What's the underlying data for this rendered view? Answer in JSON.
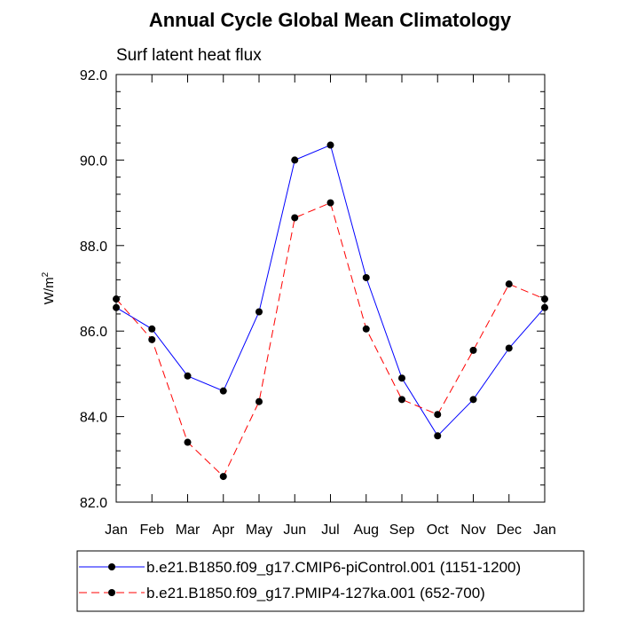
{
  "chart_data": {
    "type": "line",
    "title": "Annual Cycle Global Mean Climatology",
    "subtitle": "Surf latent heat flux",
    "ylabel_base": "W/m",
    "ylabel_sup": "2",
    "xlabel": "",
    "categories": [
      "Jan",
      "Feb",
      "Mar",
      "Apr",
      "May",
      "Jun",
      "Jul",
      "Aug",
      "Sep",
      "Oct",
      "Nov",
      "Dec",
      "Jan"
    ],
    "ylim": [
      82.0,
      92.0
    ],
    "yticks": [
      "82.0",
      "84.0",
      "86.0",
      "88.0",
      "90.0",
      "92.0"
    ],
    "series": [
      {
        "name": "b.e21.B1850.f09_g17.CMIP6-piControl.001 (1151-1200)",
        "color": "#0000ff",
        "dash": "solid",
        "values": [
          86.55,
          86.05,
          84.95,
          84.6,
          86.45,
          90.0,
          90.35,
          87.25,
          84.9,
          83.55,
          84.4,
          85.6,
          86.55
        ]
      },
      {
        "name": "b.e21.B1850.f09_g17.PMIP4-127ka.001 (652-700)",
        "color": "#ff0000",
        "dash": "dashed",
        "values": [
          86.75,
          85.8,
          83.4,
          82.6,
          84.35,
          88.65,
          89.0,
          86.05,
          84.4,
          84.05,
          85.55,
          87.1,
          86.75
        ]
      }
    ],
    "legend_position": "bottom-center",
    "grid": false
  }
}
